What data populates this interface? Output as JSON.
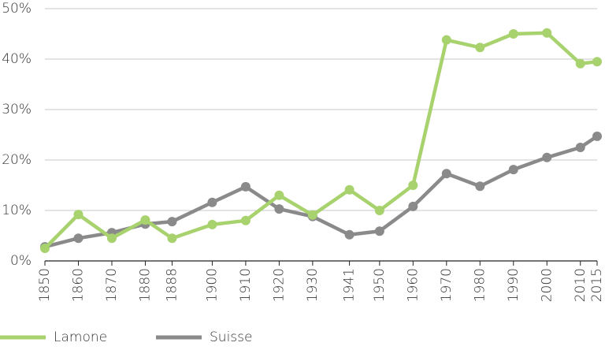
{
  "chart_data": {
    "type": "line",
    "xlim": [
      1850,
      2015
    ],
    "xticks": [
      1850,
      1860,
      1870,
      1880,
      1888,
      1900,
      1910,
      1920,
      1930,
      1941,
      1950,
      1960,
      1970,
      1980,
      1990,
      2000,
      2010,
      2015
    ],
    "ylim": [
      0,
      50
    ],
    "yticks": [
      {
        "value": 0,
        "label": "0%"
      },
      {
        "value": 10,
        "label": "10%"
      },
      {
        "value": 20,
        "label": "20%"
      },
      {
        "value": 30,
        "label": "30%"
      },
      {
        "value": 40,
        "label": "40%"
      },
      {
        "value": 50,
        "label": "50%"
      }
    ],
    "grid": true,
    "x": [
      1850,
      1860,
      1870,
      1880,
      1888,
      1900,
      1910,
      1920,
      1930,
      1941,
      1950,
      1960,
      1970,
      1980,
      1990,
      2000,
      2010,
      2015
    ],
    "series": [
      {
        "name": "Lamone",
        "color": "#a8d26e",
        "values": [
          2.5,
          9.2,
          4.5,
          8.1,
          4.5,
          7.2,
          8.0,
          13.0,
          9.1,
          14.1,
          10.0,
          15.0,
          43.8,
          42.3,
          45.0,
          45.2,
          39.1,
          39.5
        ]
      },
      {
        "name": "Suisse",
        "color": "#8a8a8a",
        "values": [
          2.8,
          4.5,
          5.6,
          7.3,
          7.8,
          11.6,
          14.7,
          10.3,
          8.8,
          5.2,
          5.9,
          10.8,
          17.3,
          14.8,
          18.1,
          20.5,
          22.5,
          24.7
        ]
      }
    ],
    "legend": "bottom-left"
  }
}
